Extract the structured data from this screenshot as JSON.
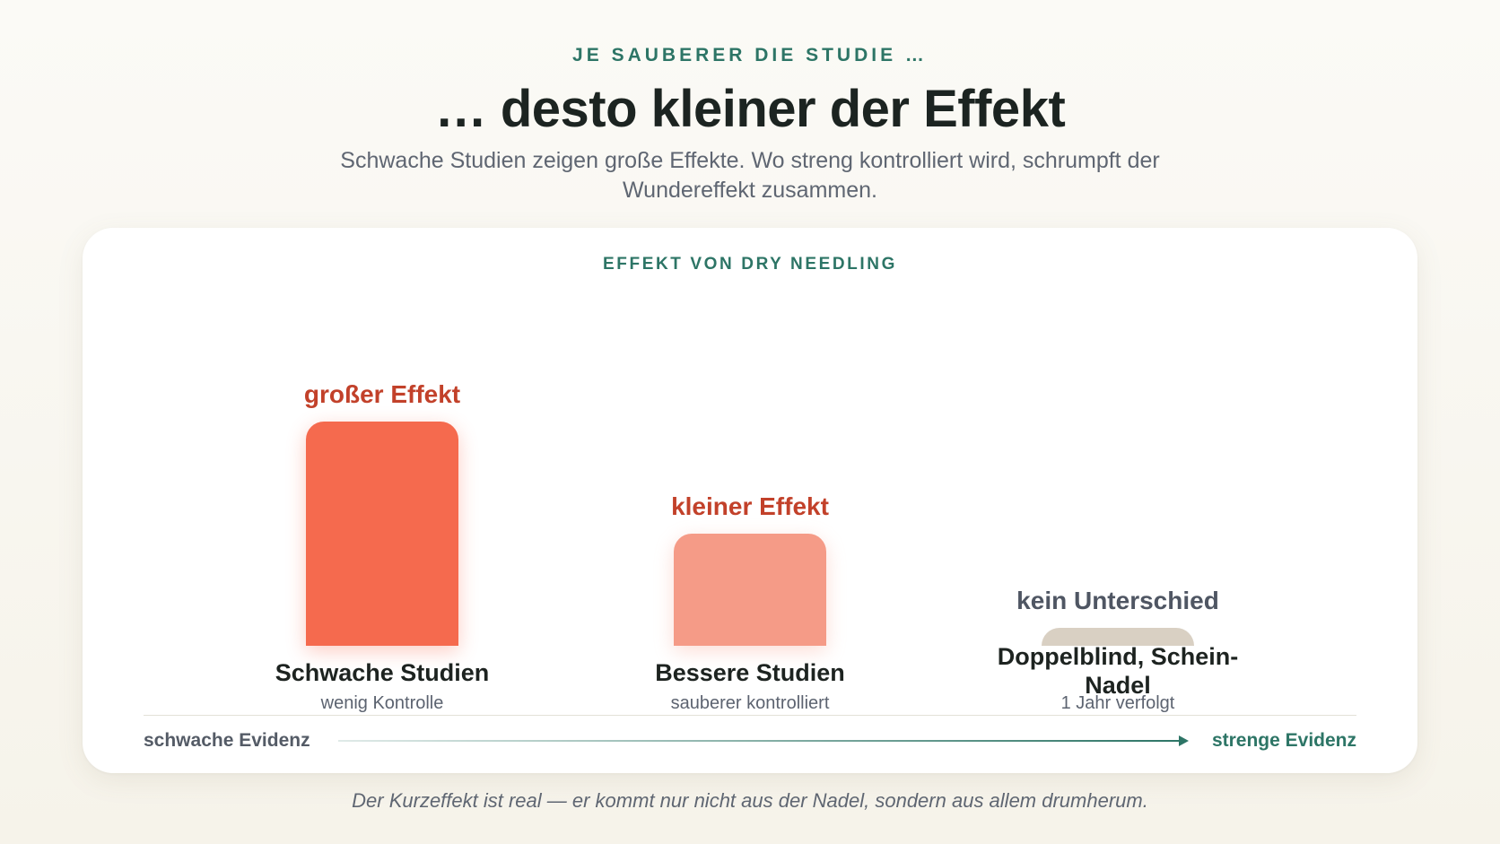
{
  "header": {
    "eyebrow": "JE SAUBERER DIE STUDIE …",
    "title": "… desto kleiner der Effekt",
    "subtitle": "Schwache Studien zeigen große Effekte. Wo streng kontrolliert wird, schrumpft der Wundereffekt zusammen."
  },
  "chart_data": {
    "type": "bar",
    "title": "EFFEKT VON DRY NEEDLING",
    "categories": [
      "Schwache Studien",
      "Bessere Studien",
      "Doppelblind, Schein-Nadel"
    ],
    "subtitles": [
      "wenig Kontrolle",
      "sauberer kontrolliert",
      "1 Jahr verfolgt"
    ],
    "value_labels": [
      "großer Effekt",
      "kleiner Effekt",
      "kein Unterschied"
    ],
    "values": [
      1.0,
      0.5,
      0.08
    ],
    "colors": [
      "#f56a4e",
      "#f59b87",
      "#d9d0c3"
    ],
    "label_colors": [
      "#c2412a",
      "#c2412a",
      "#4f5663"
    ],
    "x_axis": {
      "left_label": "schwache Evidenz",
      "right_label": "strenge Evidenz"
    }
  },
  "footnote": "Der Kurzeffekt ist real — er kommt nur nicht aus der Nadel, sondern aus allem drumherum."
}
